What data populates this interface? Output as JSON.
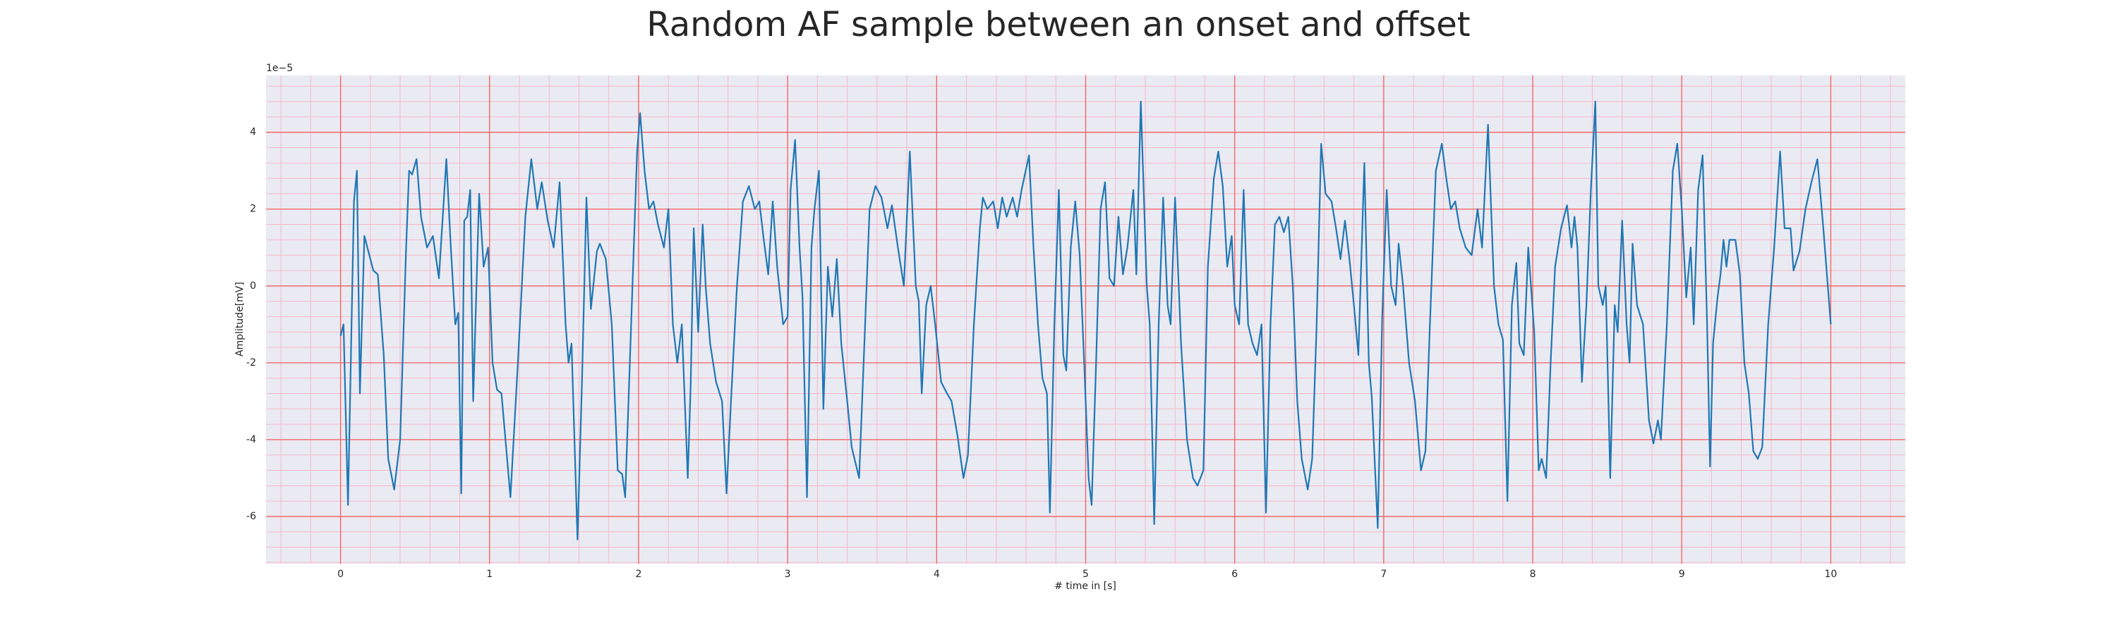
{
  "chart_data": {
    "type": "line",
    "title": "Random AF sample between an onset and offset",
    "x_label": "# time in [s]",
    "y_label": "Amplitude[mV]",
    "y_offset_label": "1e−5",
    "color": "#1f77b4",
    "grid": true,
    "minor_grid": true,
    "xlim": [
      -0.5,
      10.5
    ],
    "ylim": [
      -7.23,
      5.48
    ],
    "xticks": [
      0,
      1,
      2,
      3,
      4,
      5,
      6,
      7,
      8,
      9,
      10
    ],
    "yticks": [
      -6,
      -4,
      -2,
      0,
      2,
      4
    ],
    "x": [
      0.0,
      0.02,
      0.05,
      0.09,
      0.11,
      0.13,
      0.16,
      0.22,
      0.25,
      0.29,
      0.32,
      0.36,
      0.4,
      0.44,
      0.46,
      0.48,
      0.51,
      0.54,
      0.58,
      0.62,
      0.66,
      0.71,
      0.74,
      0.77,
      0.79,
      0.81,
      0.83,
      0.85,
      0.87,
      0.89,
      0.93,
      0.96,
      0.99,
      1.02,
      1.05,
      1.08,
      1.14,
      1.19,
      1.24,
      1.28,
      1.32,
      1.35,
      1.39,
      1.43,
      1.47,
      1.51,
      1.53,
      1.55,
      1.59,
      1.62,
      1.65,
      1.68,
      1.72,
      1.74,
      1.78,
      1.82,
      1.86,
      1.89,
      1.91,
      1.95,
      1.99,
      2.01,
      2.04,
      2.07,
      2.1,
      2.13,
      2.17,
      2.2,
      2.23,
      2.26,
      2.29,
      2.33,
      2.35,
      2.37,
      2.4,
      2.43,
      2.45,
      2.48,
      2.52,
      2.56,
      2.59,
      2.62,
      2.66,
      2.7,
      2.74,
      2.78,
      2.81,
      2.84,
      2.87,
      2.9,
      2.93,
      2.97,
      3.0,
      3.02,
      3.05,
      3.08,
      3.1,
      3.13,
      3.16,
      3.18,
      3.21,
      3.24,
      3.27,
      3.3,
      3.33,
      3.36,
      3.4,
      3.43,
      3.48,
      3.51,
      3.55,
      3.59,
      3.63,
      3.67,
      3.7,
      3.74,
      3.78,
      3.82,
      3.86,
      3.88,
      3.9,
      3.93,
      3.96,
      3.99,
      4.03,
      4.07,
      4.1,
      4.14,
      4.18,
      4.21,
      4.25,
      4.29,
      4.31,
      4.34,
      4.38,
      4.41,
      4.44,
      4.47,
      4.51,
      4.54,
      4.57,
      4.62,
      4.65,
      4.68,
      4.71,
      4.74,
      4.76,
      4.79,
      4.82,
      4.85,
      4.87,
      4.9,
      4.93,
      4.96,
      4.99,
      5.02,
      5.04,
      5.07,
      5.1,
      5.13,
      5.16,
      5.19,
      5.22,
      5.25,
      5.28,
      5.32,
      5.34,
      5.37,
      5.41,
      5.43,
      5.46,
      5.49,
      5.52,
      5.55,
      5.57,
      5.6,
      5.64,
      5.68,
      5.72,
      5.75,
      5.79,
      5.82,
      5.86,
      5.89,
      5.92,
      5.95,
      5.98,
      6.0,
      6.03,
      6.06,
      6.09,
      6.12,
      6.15,
      6.18,
      6.21,
      6.24,
      6.27,
      6.3,
      6.33,
      6.36,
      6.39,
      6.42,
      6.45,
      6.49,
      6.52,
      6.55,
      6.58,
      6.61,
      6.65,
      6.68,
      6.71,
      6.74,
      6.77,
      6.8,
      6.83,
      6.87,
      6.9,
      6.92,
      6.96,
      6.99,
      7.02,
      7.05,
      7.08,
      7.1,
      7.13,
      7.17,
      7.21,
      7.25,
      7.28,
      7.31,
      7.35,
      7.39,
      7.42,
      7.45,
      7.48,
      7.51,
      7.55,
      7.59,
      7.63,
      7.66,
      7.7,
      7.74,
      7.77,
      7.8,
      7.83,
      7.86,
      7.89,
      7.91,
      7.94,
      7.97,
      8.01,
      8.04,
      8.06,
      8.09,
      8.12,
      8.15,
      8.19,
      8.23,
      8.26,
      8.28,
      8.3,
      8.33,
      8.36,
      8.39,
      8.42,
      8.44,
      8.47,
      8.49,
      8.52,
      8.55,
      8.57,
      8.6,
      8.63,
      8.65,
      8.67,
      8.7,
      8.74,
      8.78,
      8.81,
      8.84,
      8.86,
      8.9,
      8.94,
      8.97,
      9.0,
      9.03,
      9.06,
      9.08,
      9.11,
      9.14,
      9.17,
      9.19,
      9.21,
      9.24,
      9.26,
      9.28,
      9.3,
      9.32,
      9.36,
      9.39,
      9.42,
      9.45,
      9.48,
      9.51,
      9.54,
      9.58,
      9.62,
      9.66,
      9.69,
      9.73,
      9.75,
      9.79,
      9.83,
      9.87,
      9.91,
      9.95,
      10.0
    ],
    "values": [
      -1.3,
      -1.0,
      -5.7,
      2.2,
      3.0,
      -2.8,
      1.3,
      0.4,
      0.3,
      -1.8,
      -4.5,
      -5.3,
      -4.0,
      1.0,
      3.0,
      2.9,
      3.3,
      1.8,
      1.0,
      1.3,
      0.2,
      3.3,
      1.0,
      -1.0,
      -0.7,
      -5.4,
      1.7,
      1.8,
      2.5,
      -3.0,
      2.4,
      0.5,
      1.0,
      -2.0,
      -2.7,
      -2.8,
      -5.5,
      -2.0,
      1.8,
      3.3,
      2.0,
      2.7,
      1.7,
      1.0,
      2.7,
      -1.0,
      -2.0,
      -1.5,
      -6.6,
      -2.5,
      2.3,
      -0.6,
      0.9,
      1.1,
      0.7,
      -1.0,
      -4.8,
      -4.9,
      -5.5,
      -1.0,
      3.5,
      4.5,
      3.0,
      2.0,
      2.2,
      1.6,
      1.0,
      2.0,
      -1.0,
      -2.0,
      -1.0,
      -5.0,
      -2.5,
      1.5,
      -1.2,
      1.6,
      0.0,
      -1.5,
      -2.5,
      -3.0,
      -5.4,
      -3.0,
      0.0,
      2.2,
      2.6,
      2.0,
      2.2,
      1.2,
      0.3,
      2.2,
      0.5,
      -1.0,
      -0.8,
      2.5,
      3.8,
      1.0,
      -0.3,
      -5.5,
      1.0,
      2.0,
      3.0,
      -3.2,
      0.5,
      -0.8,
      0.7,
      -1.5,
      -3.0,
      -4.2,
      -5.0,
      -2.0,
      2.0,
      2.6,
      2.3,
      1.5,
      2.1,
      1.0,
      0.0,
      3.5,
      0.0,
      -0.4,
      -2.8,
      -0.5,
      0.0,
      -1.0,
      -2.5,
      -2.8,
      -3.0,
      -3.9,
      -5.0,
      -4.4,
      -1.0,
      1.5,
      2.3,
      2.0,
      2.2,
      1.5,
      2.3,
      1.8,
      2.3,
      1.8,
      2.5,
      3.4,
      1.0,
      -1.0,
      -2.4,
      -2.8,
      -5.9,
      -1.0,
      2.5,
      -1.8,
      -2.2,
      1.0,
      2.2,
      0.8,
      -2.0,
      -5.0,
      -5.7,
      -2.0,
      2.0,
      2.7,
      0.2,
      0.0,
      1.8,
      0.3,
      1.0,
      2.5,
      0.3,
      4.8,
      0.0,
      -1.0,
      -6.2,
      -1.0,
      2.3,
      -0.5,
      -1.0,
      2.3,
      -1.5,
      -4.0,
      -5.0,
      -5.2,
      -4.8,
      0.5,
      2.8,
      3.5,
      2.6,
      0.5,
      1.3,
      -0.5,
      -1.0,
      2.5,
      -1.0,
      -1.5,
      -1.8,
      -1.0,
      -5.9,
      -1.0,
      1.6,
      1.8,
      1.4,
      1.8,
      0.0,
      -3.0,
      -4.5,
      -5.3,
      -4.5,
      -1.0,
      3.7,
      2.4,
      2.2,
      1.5,
      0.7,
      1.7,
      0.7,
      -0.5,
      -1.8,
      3.2,
      -2.0,
      -2.9,
      -6.3,
      -0.8,
      2.5,
      0.0,
      -0.5,
      1.1,
      0.0,
      -2.0,
      -3.0,
      -4.8,
      -4.3,
      -1.0,
      3.0,
      3.7,
      2.8,
      2.0,
      2.2,
      1.5,
      1.0,
      0.8,
      2.0,
      1.0,
      4.2,
      0.0,
      -1.0,
      -1.4,
      -5.6,
      -0.5,
      0.6,
      -1.5,
      -1.8,
      1.0,
      -1.2,
      -4.8,
      -4.5,
      -5.0,
      -2.0,
      0.5,
      1.5,
      2.1,
      1.0,
      1.8,
      1.0,
      -2.5,
      -0.5,
      2.5,
      4.8,
      0.0,
      -0.5,
      0.0,
      -5.0,
      -0.5,
      -1.2,
      1.7,
      -1.0,
      -2.0,
      1.1,
      -0.5,
      -1.0,
      -3.5,
      -4.1,
      -3.5,
      -4.0,
      -1.0,
      3.0,
      3.7,
      2.0,
      -0.3,
      1.0,
      -1.0,
      2.5,
      3.4,
      -1.0,
      -4.7,
      -1.5,
      -0.3,
      0.3,
      1.2,
      0.5,
      1.2,
      1.2,
      0.3,
      -2.0,
      -2.8,
      -4.3,
      -4.5,
      -4.2,
      -1.0,
      1.0,
      3.5,
      1.5,
      1.5,
      0.4,
      0.9,
      2.0,
      2.7,
      3.3,
      1.5,
      -1.0
    ]
  }
}
